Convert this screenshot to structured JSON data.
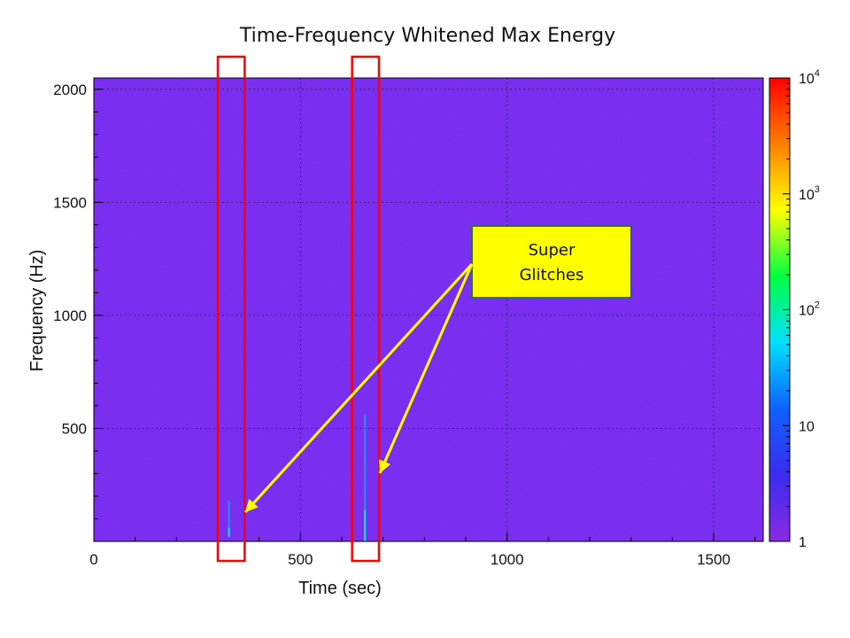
{
  "chart_data": {
    "type": "heatmap",
    "title": "Time-Frequency Whitened Max Energy",
    "xlabel": "Time (sec)",
    "ylabel": "Frequency (Hz)",
    "xlim": [
      0,
      1620
    ],
    "ylim": [
      0,
      2050
    ],
    "x_ticks": [
      0,
      500,
      1000,
      1500
    ],
    "y_ticks": [
      500,
      1000,
      1500,
      2000
    ],
    "grid": true,
    "colorbar": {
      "scale": "log",
      "range": [
        1,
        10000
      ],
      "tick_values": [
        1,
        10,
        100,
        1000,
        10000
      ],
      "tick_labels": [
        {
          "base": "1",
          "exp": ""
        },
        {
          "base": "10",
          "exp": ""
        },
        {
          "base": "10",
          "exp": "2"
        },
        {
          "base": "10",
          "exp": "3"
        },
        {
          "base": "10",
          "exp": "4"
        }
      ],
      "colors": [
        "#8a2be2",
        "#3a2cf0",
        "#1060ff",
        "#00e0ff",
        "#00ff40",
        "#ffff00",
        "#ff8000",
        "#ff0000"
      ]
    },
    "background_color": "#7a2ef0",
    "glitches": [
      {
        "time": 327,
        "freq_min": 20,
        "freq_max": 180
      },
      {
        "time": 656,
        "freq_min": 0,
        "freq_max": 560
      }
    ],
    "highlight_boxes": [
      {
        "time_min": 300,
        "time_max": 365
      },
      {
        "time_min": 625,
        "time_max": 690
      }
    ],
    "annotation": {
      "lines": [
        "Super",
        "Glitches"
      ],
      "box_color": "#ffff00"
    }
  }
}
